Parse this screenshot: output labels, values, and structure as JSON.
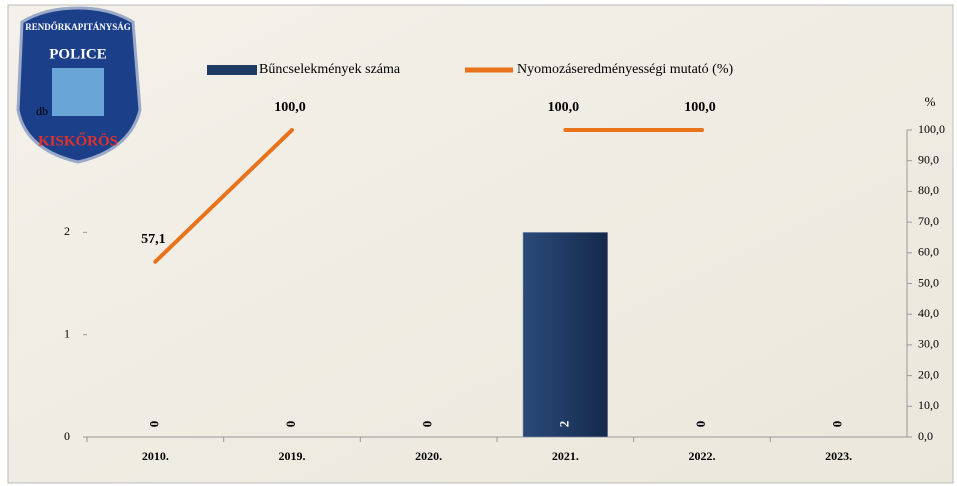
{
  "chart_data": {
    "type": "combo",
    "categories": [
      "2010.",
      "2019.",
      "2020.",
      "2021.",
      "2022.",
      "2023."
    ],
    "series": [
      {
        "name": "Bűncselekmények száma",
        "type": "bar",
        "color": "#1f3a63",
        "values": [
          0,
          0,
          0,
          2,
          0,
          0
        ]
      },
      {
        "name": "Nyomozáseredményességi mutató (%)",
        "type": "line",
        "axis": "y2",
        "color": "#e8731a",
        "values": [
          57.1,
          100,
          null,
          100,
          100,
          null
        ],
        "value_labels": [
          "57,1",
          "100,0",
          null,
          "100,0",
          "100,0",
          null
        ]
      }
    ],
    "y_label": "db",
    "y2_label": "%",
    "ylim": [
      0,
      3
    ],
    "yticks": [
      0,
      1,
      2
    ],
    "y2lim": [
      0,
      100
    ],
    "y2ticks": [
      {
        "value": 0,
        "label": "0,0"
      },
      {
        "value": 10,
        "label": "10,0"
      },
      {
        "value": 20,
        "label": "20,0"
      },
      {
        "value": 30,
        "label": "30,0"
      },
      {
        "value": 40,
        "label": "40,0"
      },
      {
        "value": 50,
        "label": "50,0"
      },
      {
        "value": 60,
        "label": "60,0"
      },
      {
        "value": 70,
        "label": "70,0"
      },
      {
        "value": 80,
        "label": "80,0"
      },
      {
        "value": 90,
        "label": "90,0"
      },
      {
        "value": 100,
        "label": "100,0"
      }
    ],
    "legend": "top"
  },
  "logo": {
    "top": "RENDŐRKAPITÁNYSÁG",
    "middle": "POLICE",
    "bottom": "KISKŐRÖS"
  }
}
